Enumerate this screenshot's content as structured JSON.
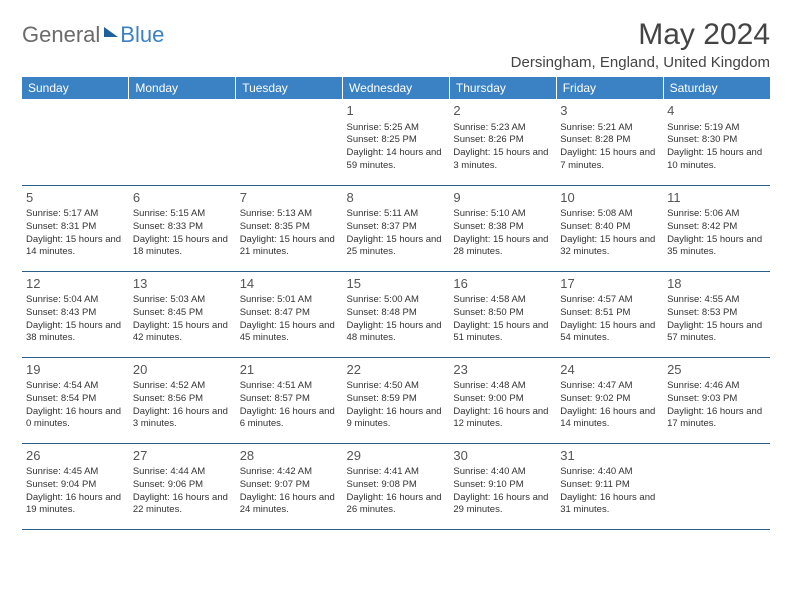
{
  "logo": {
    "general": "General",
    "blue": "Blue"
  },
  "title": "May 2024",
  "location": "Dersingham, England, United Kingdom",
  "colors": {
    "header_bg": "#3b82c4",
    "header_fg": "#ffffff",
    "row_border": "#2d5f8a",
    "daynum_color": "#555555",
    "text_color": "#333333"
  },
  "fonts": {
    "title_size": 30,
    "location_size": 15,
    "th_size": 12,
    "cell_size": 9.5,
    "daynum_size": 13
  },
  "dayNames": [
    "Sunday",
    "Monday",
    "Tuesday",
    "Wednesday",
    "Thursday",
    "Friday",
    "Saturday"
  ],
  "weeks": [
    [
      null,
      null,
      null,
      {
        "n": "1",
        "sr": "5:25 AM",
        "ss": "8:25 PM",
        "dl": "14 hours and 59 minutes."
      },
      {
        "n": "2",
        "sr": "5:23 AM",
        "ss": "8:26 PM",
        "dl": "15 hours and 3 minutes."
      },
      {
        "n": "3",
        "sr": "5:21 AM",
        "ss": "8:28 PM",
        "dl": "15 hours and 7 minutes."
      },
      {
        "n": "4",
        "sr": "5:19 AM",
        "ss": "8:30 PM",
        "dl": "15 hours and 10 minutes."
      }
    ],
    [
      {
        "n": "5",
        "sr": "5:17 AM",
        "ss": "8:31 PM",
        "dl": "15 hours and 14 minutes."
      },
      {
        "n": "6",
        "sr": "5:15 AM",
        "ss": "8:33 PM",
        "dl": "15 hours and 18 minutes."
      },
      {
        "n": "7",
        "sr": "5:13 AM",
        "ss": "8:35 PM",
        "dl": "15 hours and 21 minutes."
      },
      {
        "n": "8",
        "sr": "5:11 AM",
        "ss": "8:37 PM",
        "dl": "15 hours and 25 minutes."
      },
      {
        "n": "9",
        "sr": "5:10 AM",
        "ss": "8:38 PM",
        "dl": "15 hours and 28 minutes."
      },
      {
        "n": "10",
        "sr": "5:08 AM",
        "ss": "8:40 PM",
        "dl": "15 hours and 32 minutes."
      },
      {
        "n": "11",
        "sr": "5:06 AM",
        "ss": "8:42 PM",
        "dl": "15 hours and 35 minutes."
      }
    ],
    [
      {
        "n": "12",
        "sr": "5:04 AM",
        "ss": "8:43 PM",
        "dl": "15 hours and 38 minutes."
      },
      {
        "n": "13",
        "sr": "5:03 AM",
        "ss": "8:45 PM",
        "dl": "15 hours and 42 minutes."
      },
      {
        "n": "14",
        "sr": "5:01 AM",
        "ss": "8:47 PM",
        "dl": "15 hours and 45 minutes."
      },
      {
        "n": "15",
        "sr": "5:00 AM",
        "ss": "8:48 PM",
        "dl": "15 hours and 48 minutes."
      },
      {
        "n": "16",
        "sr": "4:58 AM",
        "ss": "8:50 PM",
        "dl": "15 hours and 51 minutes."
      },
      {
        "n": "17",
        "sr": "4:57 AM",
        "ss": "8:51 PM",
        "dl": "15 hours and 54 minutes."
      },
      {
        "n": "18",
        "sr": "4:55 AM",
        "ss": "8:53 PM",
        "dl": "15 hours and 57 minutes."
      }
    ],
    [
      {
        "n": "19",
        "sr": "4:54 AM",
        "ss": "8:54 PM",
        "dl": "16 hours and 0 minutes."
      },
      {
        "n": "20",
        "sr": "4:52 AM",
        "ss": "8:56 PM",
        "dl": "16 hours and 3 minutes."
      },
      {
        "n": "21",
        "sr": "4:51 AM",
        "ss": "8:57 PM",
        "dl": "16 hours and 6 minutes."
      },
      {
        "n": "22",
        "sr": "4:50 AM",
        "ss": "8:59 PM",
        "dl": "16 hours and 9 minutes."
      },
      {
        "n": "23",
        "sr": "4:48 AM",
        "ss": "9:00 PM",
        "dl": "16 hours and 12 minutes."
      },
      {
        "n": "24",
        "sr": "4:47 AM",
        "ss": "9:02 PM",
        "dl": "16 hours and 14 minutes."
      },
      {
        "n": "25",
        "sr": "4:46 AM",
        "ss": "9:03 PM",
        "dl": "16 hours and 17 minutes."
      }
    ],
    [
      {
        "n": "26",
        "sr": "4:45 AM",
        "ss": "9:04 PM",
        "dl": "16 hours and 19 minutes."
      },
      {
        "n": "27",
        "sr": "4:44 AM",
        "ss": "9:06 PM",
        "dl": "16 hours and 22 minutes."
      },
      {
        "n": "28",
        "sr": "4:42 AM",
        "ss": "9:07 PM",
        "dl": "16 hours and 24 minutes."
      },
      {
        "n": "29",
        "sr": "4:41 AM",
        "ss": "9:08 PM",
        "dl": "16 hours and 26 minutes."
      },
      {
        "n": "30",
        "sr": "4:40 AM",
        "ss": "9:10 PM",
        "dl": "16 hours and 29 minutes."
      },
      {
        "n": "31",
        "sr": "4:40 AM",
        "ss": "9:11 PM",
        "dl": "16 hours and 31 minutes."
      },
      null
    ]
  ],
  "labels": {
    "sunrise": "Sunrise:",
    "sunset": "Sunset:",
    "daylight": "Daylight:"
  }
}
